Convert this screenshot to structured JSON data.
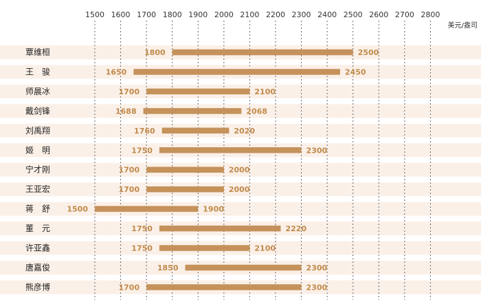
{
  "chart_data": {
    "type": "bar",
    "subtype": "floating-range-horizontal",
    "unit_label": "美元/盎司",
    "xlim": [
      1500,
      2800
    ],
    "ticks": [
      1500,
      1600,
      1700,
      1800,
      1900,
      2000,
      2100,
      2200,
      2300,
      2400,
      2500,
      2600,
      2700,
      2800
    ],
    "grid": "vertical-dashed",
    "categories": [
      "覃维桓",
      "王　骏",
      "师晨冰",
      "戴剑锋",
      "刘禹翔",
      "姬　明",
      "宁才刚",
      "王亚宏",
      "蒋　舒",
      "董　元",
      "许亚鑫",
      "唐嘉俊",
      "熊彦博"
    ],
    "series": [
      {
        "name": "low",
        "values": [
          1800,
          1650,
          1700,
          1688,
          1760,
          1750,
          1700,
          1700,
          1500,
          1750,
          1750,
          1850,
          1700
        ]
      },
      {
        "name": "high",
        "values": [
          2500,
          2450,
          2100,
          2068,
          2020,
          2300,
          2000,
          2000,
          1900,
          2220,
          2100,
          2300,
          2300
        ]
      }
    ]
  },
  "colors": {
    "bar": "#c4925a",
    "value_label": "#c08a4a",
    "band": "#fbf0e8",
    "grid": "#666666"
  }
}
